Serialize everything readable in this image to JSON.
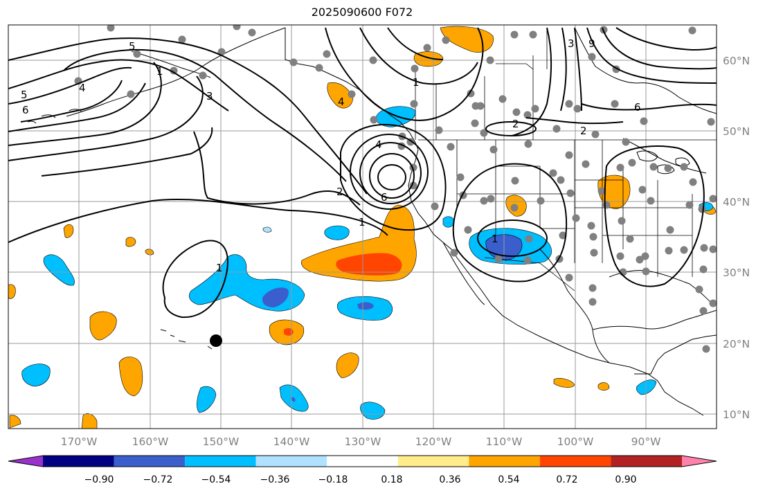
{
  "title": "2025090600 F072",
  "map": {
    "lon_range": [
      -180,
      -80
    ],
    "lat_range": [
      7,
      64
    ],
    "lon_labels": [
      "170°W",
      "160°W",
      "150°W",
      "140°W",
      "130°W",
      "120°W",
      "110°W",
      "100°W",
      "90°W"
    ],
    "lat_labels": [
      "60°N",
      "50°N",
      "40°N",
      "30°N",
      "20°N",
      "10°N"
    ],
    "contour_labels": [
      "5",
      "4",
      "5",
      "6",
      "3",
      "1",
      "9",
      "3",
      "6",
      "2",
      "4",
      "2",
      "4",
      "6",
      "2",
      "1",
      "1",
      "1",
      "1"
    ],
    "colors": {
      "grid": "#9a9a9a",
      "contour": "#000000",
      "coast": "#000000",
      "station": "#808080",
      "marker": "#000000"
    }
  },
  "colorbar": {
    "ticks": [
      "−0.90",
      "−0.72",
      "−0.54",
      "−0.36",
      "−0.18",
      "0.18",
      "0.36",
      "0.54",
      "0.72",
      "0.90"
    ],
    "colors": [
      "#9932CC",
      "#000080",
      "#3A5FCD",
      "#00BFFF",
      "#B0E2FF",
      "#FFFFFF",
      "#FFEC8B",
      "#FFA500",
      "#FF4500",
      "#B22222",
      "#FF82AB"
    ]
  }
}
